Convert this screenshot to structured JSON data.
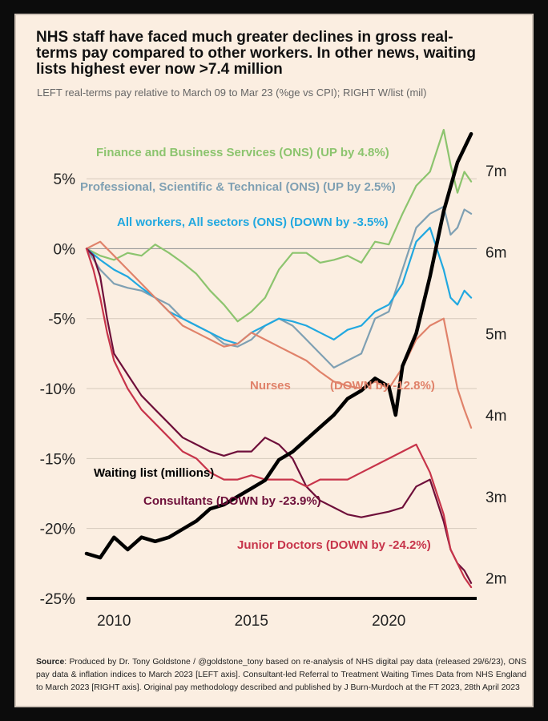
{
  "title": "NHS staff have faced much greater declines in gross real-terms pay compared to other workers. In other news, waiting lists highest ever now >7.4 million",
  "subtitle": "LEFT real-terms pay relative to March 09 to Mar 23 (%ge vs CPI); RIGHT W/list (mil)",
  "source_label": "Source",
  "source_text": ": Produced by Dr. Tony Goldstone / @goldstone_tony based on re-analysis of NHS digital pay data (released 29/6/23), ONS pay data & inflation indices to March 2023 [LEFT axis]. Consultant-led Referral to Treatment Waiting Times Data from NHS England to March 2023 [RIGHT axis]. Original pay methodology described and published by J Burn-Murdoch at the FT 2023, 28th April 2023",
  "chart_data": {
    "type": "line",
    "title": "NHS staff have faced much greater declines in gross real-terms pay compared to other workers. In other news, waiting lists highest ever now >7.4 million",
    "xlim": [
      2009,
      2023.2
    ],
    "ylim_left": [
      -25,
      8.5
    ],
    "ylim_right": [
      1.75,
      7.5
    ],
    "x_ticks": [
      2010,
      2015,
      2020
    ],
    "x_tick_labels": [
      "2010",
      "2015",
      "2020"
    ],
    "y_left_ticks": [
      5,
      0,
      -5,
      -10,
      -15,
      -20,
      -25
    ],
    "y_left_tick_labels": [
      "5%",
      "0%",
      "-5%",
      "-10%",
      "-15%",
      "-20%",
      "-25%"
    ],
    "y_right_ticks": [
      7,
      6,
      5,
      4,
      3,
      2
    ],
    "y_right_tick_labels": [
      "7m",
      "6m",
      "5m",
      "4m",
      "3m",
      "2m"
    ],
    "series": [
      {
        "name": "Finance and Business Services (ONS) (UP by 4.8%)",
        "axis": "left",
        "color": "#8cc46e",
        "x": [
          2009.0,
          2009.5,
          2010.0,
          2010.5,
          2011.0,
          2011.5,
          2012.0,
          2012.5,
          2013.0,
          2013.5,
          2014.0,
          2014.5,
          2015.0,
          2015.5,
          2016.0,
          2016.5,
          2017.0,
          2017.5,
          2018.0,
          2018.5,
          2019.0,
          2019.5,
          2020.0,
          2020.5,
          2021.0,
          2021.5,
          2022.0,
          2022.25,
          2022.5,
          2022.75,
          2023.0
        ],
        "y": [
          0.0,
          -0.5,
          -0.8,
          -0.3,
          -0.5,
          0.3,
          -0.3,
          -1.0,
          -1.8,
          -3.0,
          -4.0,
          -5.2,
          -4.5,
          -3.5,
          -1.5,
          -0.3,
          -0.3,
          -1.0,
          -0.8,
          -0.5,
          -1.0,
          0.5,
          0.3,
          2.5,
          4.5,
          5.5,
          8.5,
          6.0,
          4.0,
          5.5,
          4.8
        ]
      },
      {
        "name": "Professional, Scientific & Technical (ONS) (UP by 2.5%)",
        "axis": "left",
        "color": "#7fa0b3",
        "x": [
          2009.0,
          2009.5,
          2010.0,
          2010.5,
          2011.0,
          2011.5,
          2012.0,
          2012.5,
          2013.0,
          2013.5,
          2014.0,
          2014.5,
          2015.0,
          2015.5,
          2016.0,
          2016.5,
          2017.0,
          2017.5,
          2018.0,
          2018.5,
          2019.0,
          2019.5,
          2020.0,
          2020.5,
          2021.0,
          2021.5,
          2022.0,
          2022.25,
          2022.5,
          2022.75,
          2023.0
        ],
        "y": [
          0.0,
          -1.5,
          -2.5,
          -2.8,
          -3.0,
          -3.5,
          -4.0,
          -5.0,
          -5.5,
          -6.0,
          -6.8,
          -7.0,
          -6.5,
          -5.5,
          -5.0,
          -5.5,
          -6.5,
          -7.5,
          -8.5,
          -8.0,
          -7.5,
          -5.0,
          -4.5,
          -1.5,
          1.5,
          2.5,
          3.0,
          1.0,
          1.5,
          2.8,
          2.5
        ]
      },
      {
        "name": "All workers, All sectors (ONS) (DOWN by -3.5%)",
        "axis": "left",
        "color": "#21a8e0",
        "x": [
          2009.0,
          2009.5,
          2010.0,
          2010.5,
          2011.0,
          2011.5,
          2012.0,
          2012.5,
          2013.0,
          2013.5,
          2014.0,
          2014.5,
          2015.0,
          2015.5,
          2016.0,
          2016.5,
          2017.0,
          2017.5,
          2018.0,
          2018.5,
          2019.0,
          2019.5,
          2020.0,
          2020.5,
          2021.0,
          2021.5,
          2022.0,
          2022.25,
          2022.5,
          2022.75,
          2023.0
        ],
        "y": [
          0.0,
          -0.8,
          -1.5,
          -2.0,
          -2.8,
          -3.5,
          -4.5,
          -5.0,
          -5.5,
          -6.0,
          -6.5,
          -6.8,
          -6.0,
          -5.5,
          -5.0,
          -5.2,
          -5.5,
          -6.0,
          -6.5,
          -5.8,
          -5.5,
          -4.5,
          -4.0,
          -2.5,
          0.5,
          1.5,
          -1.5,
          -3.5,
          -4.0,
          -3.0,
          -3.5
        ]
      },
      {
        "name": "Nurses (DOWN by -12.8%)",
        "axis": "left",
        "color": "#e0826a",
        "x": [
          2009.0,
          2009.5,
          2010.0,
          2010.5,
          2011.0,
          2011.5,
          2012.0,
          2012.5,
          2013.0,
          2013.5,
          2014.0,
          2014.5,
          2015.0,
          2015.5,
          2016.0,
          2016.5,
          2017.0,
          2017.5,
          2018.0,
          2018.5,
          2019.0,
          2019.5,
          2020.0,
          2020.5,
          2021.0,
          2021.5,
          2022.0,
          2022.25,
          2022.5,
          2022.75,
          2023.0
        ],
        "y": [
          0.0,
          0.5,
          -0.5,
          -1.5,
          -2.5,
          -3.5,
          -4.5,
          -5.5,
          -6.0,
          -6.5,
          -7.0,
          -6.8,
          -6.0,
          -6.5,
          -7.0,
          -7.5,
          -8.0,
          -8.8,
          -9.5,
          -9.8,
          -10.0,
          -9.5,
          -10.0,
          -8.5,
          -6.5,
          -5.5,
          -5.0,
          -7.5,
          -10.0,
          -11.5,
          -12.8
        ]
      },
      {
        "name": "Consultants (DOWN by -23.9%)",
        "axis": "left",
        "color": "#6e0f3a",
        "x": [
          2009.0,
          2009.25,
          2009.5,
          2009.75,
          2010.0,
          2010.5,
          2011.0,
          2011.5,
          2012.0,
          2012.5,
          2013.0,
          2013.5,
          2014.0,
          2014.5,
          2015.0,
          2015.5,
          2016.0,
          2016.5,
          2017.0,
          2017.5,
          2018.0,
          2018.5,
          2019.0,
          2019.5,
          2020.0,
          2020.5,
          2021.0,
          2021.5,
          2022.0,
          2022.25,
          2022.5,
          2022.75,
          2023.0
        ],
        "y": [
          0.0,
          -0.5,
          -2.0,
          -5.0,
          -7.5,
          -9.0,
          -10.5,
          -11.5,
          -12.5,
          -13.5,
          -14.0,
          -14.5,
          -14.8,
          -14.5,
          -14.5,
          -13.5,
          -14.0,
          -15.0,
          -17.0,
          -18.0,
          -18.5,
          -19.0,
          -19.2,
          -19.0,
          -18.8,
          -18.5,
          -17.0,
          -16.5,
          -19.5,
          -21.5,
          -22.5,
          -23.0,
          -23.9
        ]
      },
      {
        "name": "Junior Doctors (DOWN by -24.2%)",
        "axis": "left",
        "color": "#c7344a",
        "x": [
          2009.0,
          2009.25,
          2009.5,
          2009.75,
          2010.0,
          2010.5,
          2011.0,
          2011.5,
          2012.0,
          2012.5,
          2013.0,
          2013.5,
          2014.0,
          2014.5,
          2015.0,
          2015.5,
          2016.0,
          2016.5,
          2017.0,
          2017.5,
          2018.0,
          2018.5,
          2019.0,
          2019.5,
          2020.0,
          2020.5,
          2021.0,
          2021.5,
          2022.0,
          2022.25,
          2022.5,
          2022.75,
          2023.0
        ],
        "y": [
          0.0,
          -1.5,
          -3.5,
          -6.0,
          -8.0,
          -10.0,
          -11.5,
          -12.5,
          -13.5,
          -14.5,
          -15.0,
          -16.0,
          -16.5,
          -16.5,
          -16.2,
          -16.5,
          -16.5,
          -16.5,
          -17.0,
          -16.5,
          -16.5,
          -16.5,
          -16.0,
          -15.5,
          -15.0,
          -14.5,
          -14.0,
          -16.0,
          -19.0,
          -21.5,
          -22.5,
          -23.5,
          -24.2
        ]
      },
      {
        "name": "Waiting list (millions)",
        "axis": "right",
        "color": "#000000",
        "x": [
          2009.0,
          2009.5,
          2010.0,
          2010.5,
          2011.0,
          2011.5,
          2012.0,
          2012.5,
          2013.0,
          2013.5,
          2014.0,
          2014.5,
          2015.0,
          2015.5,
          2016.0,
          2016.5,
          2017.0,
          2017.5,
          2018.0,
          2018.5,
          2019.0,
          2019.5,
          2020.0,
          2020.25,
          2020.5,
          2021.0,
          2021.5,
          2022.0,
          2022.5,
          2023.0
        ],
        "y": [
          2.3,
          2.25,
          2.5,
          2.35,
          2.5,
          2.45,
          2.5,
          2.6,
          2.7,
          2.85,
          2.9,
          3.0,
          3.1,
          3.2,
          3.45,
          3.55,
          3.7,
          3.85,
          4.0,
          4.2,
          4.3,
          4.45,
          4.35,
          4.0,
          4.6,
          5.0,
          5.7,
          6.5,
          7.1,
          7.45
        ]
      }
    ],
    "annotations": [
      {
        "text": "Finance and Business Services (ONS) (UP by 4.8%)",
        "color": "#8cc46e"
      },
      {
        "text": "Professional, Scientific & Technical (ONS) (UP by 2.5%)",
        "color": "#7fa0b3"
      },
      {
        "text": "All workers, All sectors (ONS) (DOWN by -3.5%)",
        "color": "#21a8e0"
      },
      {
        "text": "Nurses",
        "color": "#e0826a"
      },
      {
        "text": "(DOWN by -12.8%)",
        "color": "#e0826a"
      },
      {
        "text": "Waiting list (millions)",
        "color": "#000000"
      },
      {
        "text": "Consultants (DOWN by -23.9%)",
        "color": "#6e0f3a"
      },
      {
        "text": "Junior Doctors (DOWN by -24.2%)",
        "color": "#c7344a"
      }
    ]
  }
}
